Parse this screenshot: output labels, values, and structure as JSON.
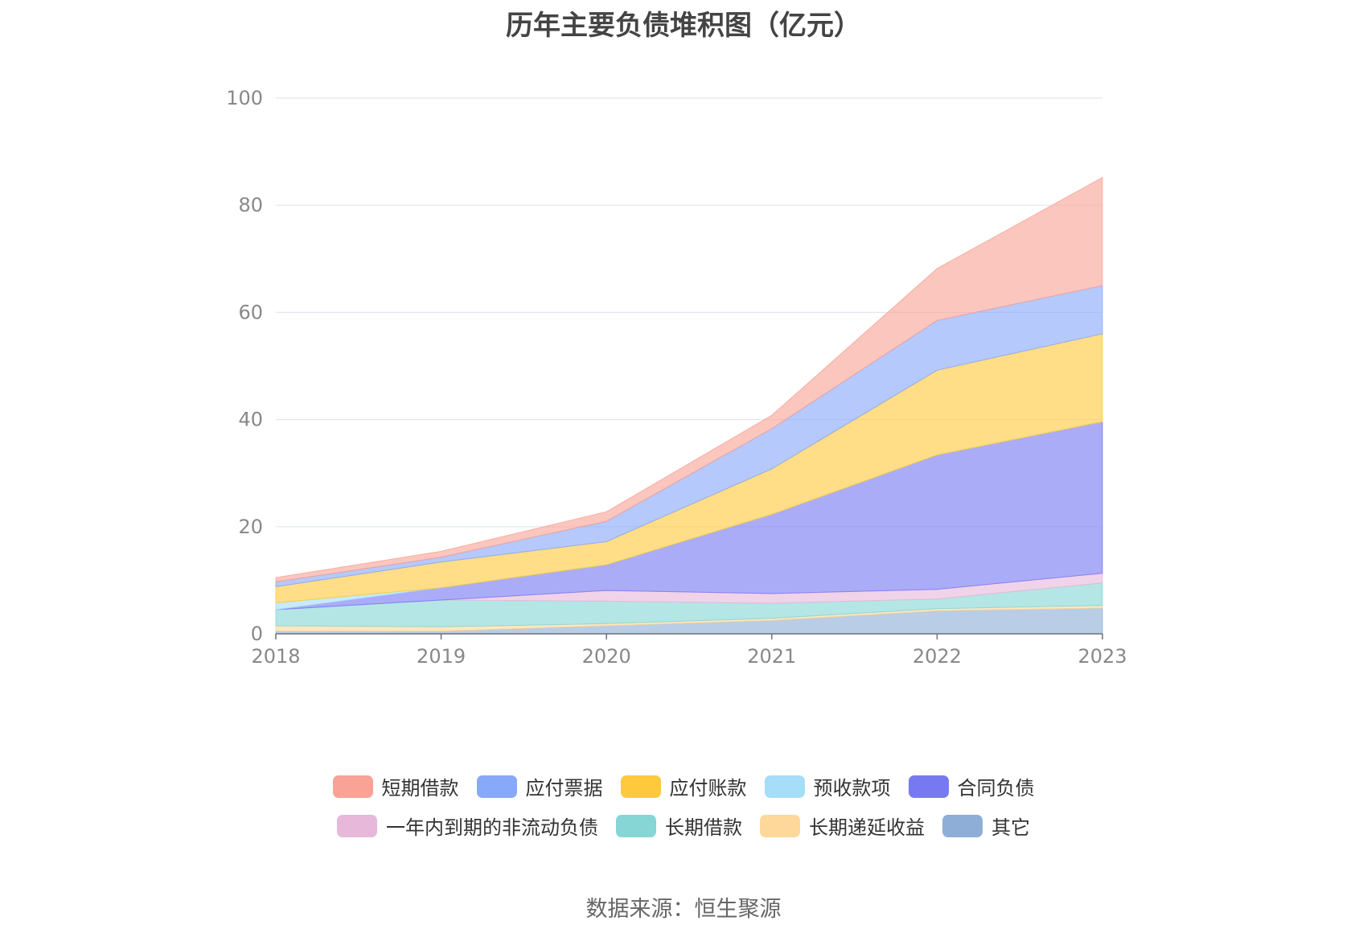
{
  "title": "历年主要负债堆积图（亿元）",
  "source": "数据来源：恒生聚源",
  "colors": {
    "短期借款": "#F8A396",
    "应付票据": "#88A8FA",
    "应付账款": "#FFC93D",
    "预收款项": "#A6DDF8",
    "合同负债": "#7779F3",
    "一年内到期的非流动负债": "#E8B8DB",
    "长期借款": "#86D6D6",
    "长期递延收益": "#FDD89A",
    "其它": "#8EAED8"
  },
  "legend_order": [
    [
      "短期借款",
      "应付票据",
      "应付账款",
      "预收款项",
      "合同负债"
    ],
    [
      "一年内到期的非流动负债",
      "长期借款",
      "长期递延收益",
      "其它"
    ]
  ],
  "chart_data": {
    "type": "area",
    "stacked": true,
    "title": "历年主要负债堆积图（亿元）",
    "x": [
      "2018",
      "2019",
      "2020",
      "2021",
      "2022",
      "2023"
    ],
    "ylim": [
      0,
      100
    ],
    "yticks": [
      0,
      20,
      40,
      60,
      80,
      100
    ],
    "grid": true,
    "legend_position": "bottom",
    "series": [
      {
        "name": "其它",
        "values": [
          0.5,
          0.5,
          1.5,
          2.5,
          4.3,
          4.8
        ]
      },
      {
        "name": "长期递延收益",
        "values": [
          1.0,
          0.8,
          0.4,
          0.4,
          0.4,
          0.5
        ]
      },
      {
        "name": "长期借款",
        "values": [
          3.0,
          5.0,
          4.2,
          2.8,
          1.8,
          4.2
        ]
      },
      {
        "name": "一年内到期的非流动负债",
        "values": [
          0.0,
          0.0,
          2.0,
          1.8,
          1.8,
          1.8
        ]
      },
      {
        "name": "合同负债",
        "values": [
          0.0,
          2.3,
          4.8,
          14.8,
          25.1,
          28.3
        ]
      },
      {
        "name": "预收款项",
        "values": [
          1.3,
          0.0,
          0.0,
          0.0,
          0.0,
          0.0
        ]
      },
      {
        "name": "应付账款",
        "values": [
          3.0,
          4.8,
          4.3,
          8.5,
          15.8,
          16.4
        ]
      },
      {
        "name": "应付票据",
        "values": [
          0.9,
          0.9,
          3.8,
          7.5,
          9.3,
          9.0
        ]
      },
      {
        "name": "短期借款",
        "values": [
          0.8,
          1.1,
          1.8,
          2.5,
          9.7,
          20.2
        ]
      }
    ]
  }
}
